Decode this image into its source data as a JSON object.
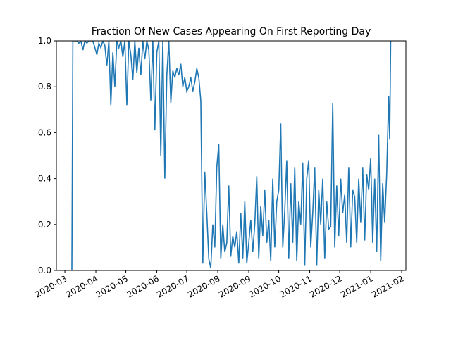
{
  "chart_data": {
    "type": "line",
    "title": "Fraction Of New Cases Appearing On First Reporting Day",
    "x": [
      7,
      8,
      10,
      12,
      14,
      16,
      18,
      20,
      22,
      24,
      26,
      28,
      30,
      32,
      34,
      36,
      38,
      40,
      42,
      44,
      46,
      48,
      50,
      52,
      54,
      56,
      58,
      60,
      62,
      64,
      66,
      68,
      70,
      72,
      74,
      76,
      78,
      80,
      82,
      84,
      86,
      88,
      90,
      92,
      94,
      96,
      98,
      100,
      102,
      104,
      106,
      108,
      110,
      112,
      114,
      116,
      118,
      120,
      122,
      124,
      126,
      128,
      130,
      132,
      134,
      136,
      138,
      140,
      142,
      144,
      146,
      148,
      150,
      152,
      154,
      156,
      158,
      160,
      162,
      164,
      166,
      168,
      170,
      172,
      174,
      176,
      178,
      180,
      182,
      184,
      186,
      188,
      190,
      192,
      194,
      196,
      198,
      200,
      202,
      204,
      206,
      208,
      210,
      212,
      214,
      216,
      218,
      220,
      222,
      224,
      226,
      228,
      230,
      232,
      234,
      236,
      238,
      240,
      242,
      244,
      246,
      248,
      250,
      252,
      254,
      256,
      258,
      260,
      262,
      264,
      266,
      268,
      270,
      272,
      274,
      276,
      278,
      280,
      282,
      284,
      286,
      288,
      290,
      292,
      294,
      296,
      298,
      300,
      302,
      304,
      306,
      308,
      310,
      312,
      314,
      316,
      318,
      320,
      322,
      324,
      325,
      326
    ],
    "series": [
      {
        "name": "fraction",
        "color": "#1f77b4",
        "values": [
          0,
          1,
          1,
          1,
          0.99,
          1,
          0.96,
          1,
          0.99,
          1,
          1,
          1,
          0.97,
          0.94,
          0.99,
          0.97,
          1,
          0.98,
          0.89,
          1,
          0.72,
          0.95,
          0.8,
          1,
          0.97,
          1,
          0.93,
          1,
          0.72,
          1,
          0.94,
          0.83,
          1,
          0.86,
          0.97,
          0.85,
          1,
          0.92,
          1,
          0.96,
          0.74,
          1,
          0.61,
          0.95,
          1,
          0.5,
          1,
          0.4,
          0.85,
          1,
          0.73,
          0.87,
          0.84,
          0.88,
          0.85,
          0.9,
          0.8,
          0.84,
          0.78,
          0.8,
          0.84,
          0.78,
          0.82,
          0.88,
          0.84,
          0.74,
          0.03,
          0.43,
          0.25,
          0.05,
          0.01,
          0.2,
          0.1,
          0.45,
          0.55,
          0.05,
          0.2,
          0.08,
          0.12,
          0.37,
          0.06,
          0.15,
          0.1,
          0.17,
          0.03,
          0.25,
          0.05,
          0.3,
          0.03,
          0.12,
          0.22,
          0.08,
          0.2,
          0.41,
          0.05,
          0.28,
          0.15,
          0.35,
          0.12,
          0.22,
          0.04,
          0.4,
          0.1,
          0.3,
          0.35,
          0.64,
          0.1,
          0.26,
          0.48,
          0.05,
          0.38,
          0.12,
          0.45,
          0.04,
          0.3,
          0.2,
          0.47,
          0.02,
          0.4,
          0.48,
          0.1,
          0.25,
          0.45,
          0.02,
          0.35,
          0.2,
          0.4,
          0.05,
          0.3,
          0.18,
          0.19,
          0.73,
          0.1,
          0.37,
          0.15,
          0.4,
          0.25,
          0.33,
          0.12,
          0.45,
          0.1,
          0.35,
          0.32,
          0.12,
          0.4,
          0.21,
          0.45,
          0.13,
          0.42,
          0.35,
          0.49,
          0.12,
          0.4,
          0.08,
          0.59,
          0.04,
          0.38,
          0.21,
          0.42,
          0.76,
          0.57,
          1
        ]
      }
    ],
    "xlim": [
      -8.5,
      341.2
    ],
    "xticks": [
      {
        "value": 0,
        "label": "2020-03"
      },
      {
        "value": 31,
        "label": "2020-04"
      },
      {
        "value": 61,
        "label": "2020-05"
      },
      {
        "value": 92,
        "label": "2020-06"
      },
      {
        "value": 122,
        "label": "2020-07"
      },
      {
        "value": 153,
        "label": "2020-08"
      },
      {
        "value": 184,
        "label": "2020-09"
      },
      {
        "value": 214,
        "label": "2020-10"
      },
      {
        "value": 245,
        "label": "2020-11"
      },
      {
        "value": 275,
        "label": "2020-12"
      },
      {
        "value": 306,
        "label": "2021-01"
      },
      {
        "value": 337,
        "label": "2021-02"
      }
    ],
    "ylim": [
      0,
      1
    ],
    "yticks": [
      {
        "value": 0,
        "label": "0.0"
      },
      {
        "value": 0.2,
        "label": "0.2"
      },
      {
        "value": 0.4,
        "label": "0.4"
      },
      {
        "value": 0.6,
        "label": "0.6"
      },
      {
        "value": 0.8,
        "label": "0.8"
      },
      {
        "value": 1,
        "label": "1.0"
      }
    ]
  }
}
